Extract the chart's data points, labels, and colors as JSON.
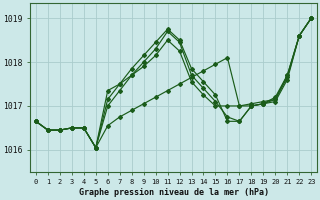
{
  "title": "Graphe pression niveau de la mer (hPa)",
  "bg_color": "#cce8e8",
  "grid_color": "#aacccc",
  "line_color": "#1a5c1a",
  "xlim": [
    -0.5,
    23.5
  ],
  "ylim": [
    1015.5,
    1019.35
  ],
  "yticks": [
    1016,
    1017,
    1018,
    1019
  ],
  "series": [
    [
      1016.65,
      1016.45,
      1016.45,
      1016.5,
      1016.5,
      1016.05,
      1016.55,
      1016.75,
      1016.9,
      1017.05,
      1017.2,
      1017.35,
      1017.5,
      1017.65,
      1017.8,
      1017.95,
      1018.1,
      1017.0,
      1017.0,
      1017.05,
      1017.1,
      1017.6,
      1018.6,
      1019.0
    ],
    [
      1016.65,
      1016.45,
      1016.45,
      1016.5,
      1016.5,
      1016.05,
      1017.35,
      1017.5,
      1017.7,
      1017.9,
      1018.15,
      1018.5,
      1018.25,
      1017.55,
      1017.25,
      1017.0,
      1017.0,
      1017.0,
      1017.05,
      1017.1,
      1017.15,
      1017.65,
      1018.6,
      1019.0
    ],
    [
      1016.65,
      1016.45,
      1016.45,
      1016.5,
      1016.5,
      1016.05,
      1017.15,
      1017.5,
      1017.85,
      1018.15,
      1018.45,
      1018.75,
      1018.5,
      1017.85,
      1017.55,
      1017.25,
      1016.65,
      1016.65,
      1017.0,
      1017.05,
      1017.2,
      1017.7,
      1018.6,
      1019.0
    ],
    [
      1016.65,
      1016.45,
      1016.45,
      1016.5,
      1016.5,
      1016.05,
      1017.0,
      1017.35,
      1017.7,
      1018.0,
      1018.3,
      1018.7,
      1018.45,
      1017.7,
      1017.4,
      1017.1,
      1016.75,
      1016.65,
      1017.0,
      1017.05,
      1017.15,
      1017.7,
      1018.6,
      1019.0
    ]
  ]
}
